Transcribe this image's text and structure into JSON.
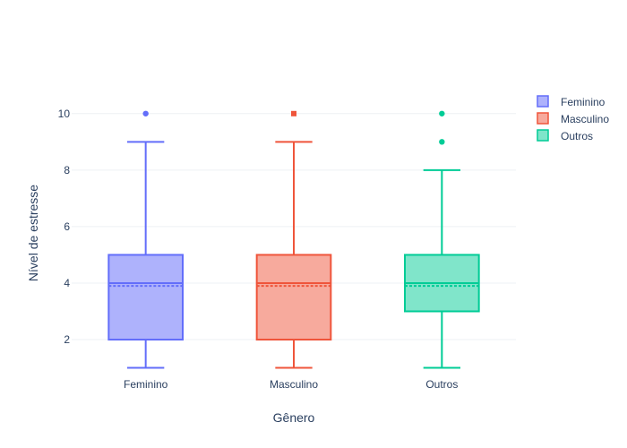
{
  "chart_data": {
    "type": "box",
    "xlabel": "Gênero",
    "ylabel": "Nível de estresse",
    "ylim": [
      0.7,
      10.85
    ],
    "yticks": [
      2,
      4,
      6,
      8,
      10
    ],
    "grid": true,
    "legend_position": "top-right",
    "categories": [
      "Feminino",
      "Masculino",
      "Outros"
    ],
    "series": [
      {
        "name": "Feminino",
        "color": "#636efa",
        "fill": "#aeb2fc",
        "min": 1,
        "q1": 2,
        "median": 4,
        "mean": 3.9,
        "q3": 5,
        "max": 9,
        "outliers": [
          10
        ]
      },
      {
        "name": "Masculino",
        "color": "#ef553b",
        "fill": "#f7aa9d",
        "min": 1,
        "q1": 2,
        "median": 4,
        "mean": 3.9,
        "q3": 5,
        "max": 9,
        "outliers": [
          10
        ]
      },
      {
        "name": "Outros",
        "color": "#00cc96",
        "fill": "#80e5ca",
        "min": 1,
        "q1": 3,
        "median": 4,
        "mean": 3.9,
        "q3": 5,
        "max": 8,
        "outliers": [
          9,
          10
        ]
      }
    ]
  }
}
